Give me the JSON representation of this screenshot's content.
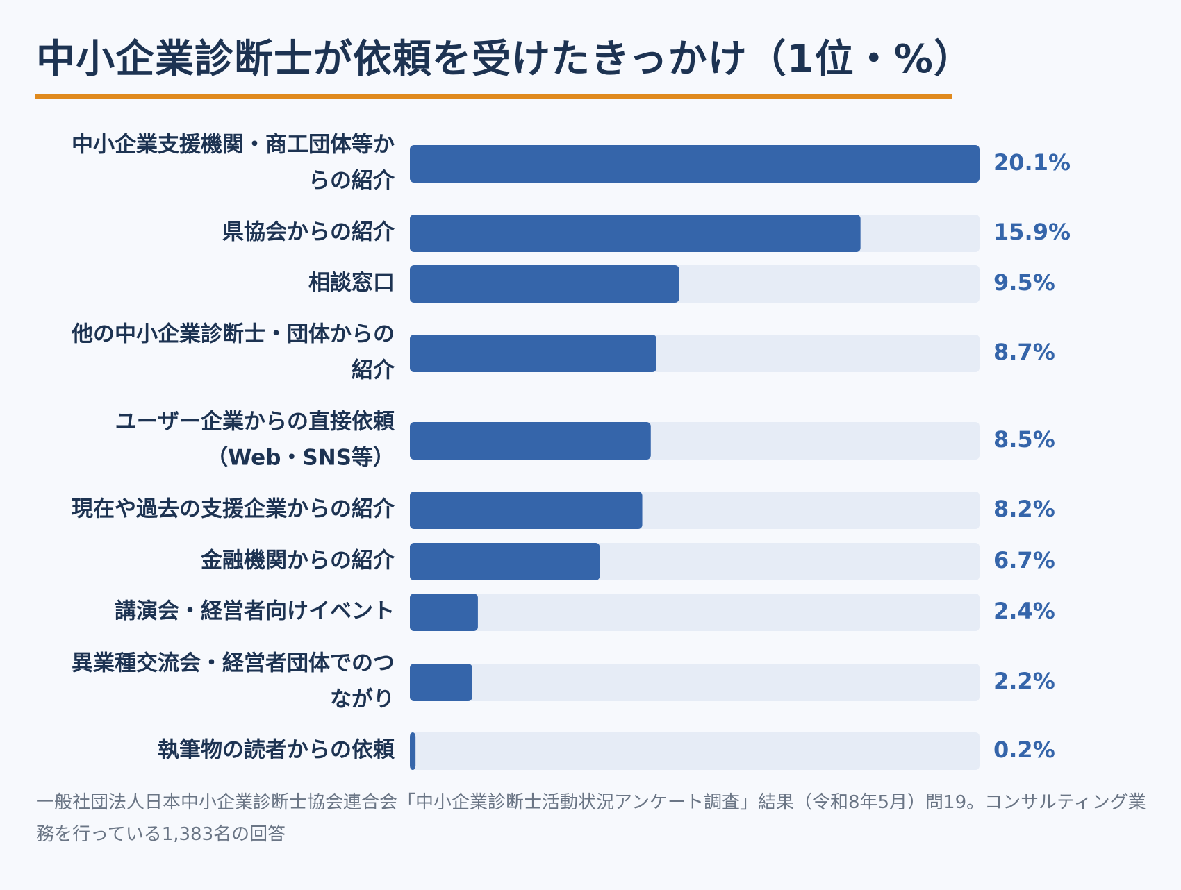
{
  "title": "中小企業診断士が依頼を受けたきっかけ（1位・%）",
  "source": "一般社団法人日本中小企業診断士協会連合会「中小企業診断士活動状況アンケート調査」結果（令和8年5月）問19。コンサルティング業務を行っている1,383名の回答",
  "colors": {
    "bar": "#3565aa",
    "track": "#e6ecf6",
    "accent_rule": "#e08a1e",
    "text": "#1d3352",
    "value_text": "#3565aa"
  },
  "chart_data": {
    "type": "bar",
    "orientation": "horizontal",
    "title": "中小企業診断士が依頼を受けたきっかけ（1位・%）",
    "xlabel": "",
    "ylabel": "",
    "xlim": [
      0,
      20.1
    ],
    "grid": false,
    "legend": "none",
    "unit": "%",
    "categories": [
      [
        "中小企業支援機関・商工団体等か",
        "らの紹介"
      ],
      [
        "県協会からの紹介"
      ],
      [
        "相談窓口"
      ],
      [
        "他の中小企業診断士・団体からの",
        "紹介"
      ],
      [
        "ユーザー企業からの直接依頼",
        "（Web・SNS等）"
      ],
      [
        "現在や過去の支援企業からの紹介"
      ],
      [
        "金融機関からの紹介"
      ],
      [
        "講演会・経営者向けイベント"
      ],
      [
        "異業種交流会・経営者団体でのつ",
        "ながり"
      ],
      [
        "執筆物の読者からの依頼"
      ]
    ],
    "values": [
      20.1,
      15.9,
      9.5,
      8.7,
      8.5,
      8.2,
      6.7,
      2.4,
      2.2,
      0.2
    ],
    "value_labels": [
      "20.1%",
      "15.9%",
      "9.5%",
      "8.7%",
      "8.5%",
      "8.2%",
      "6.7%",
      "2.4%",
      "2.2%",
      "0.2%"
    ]
  }
}
